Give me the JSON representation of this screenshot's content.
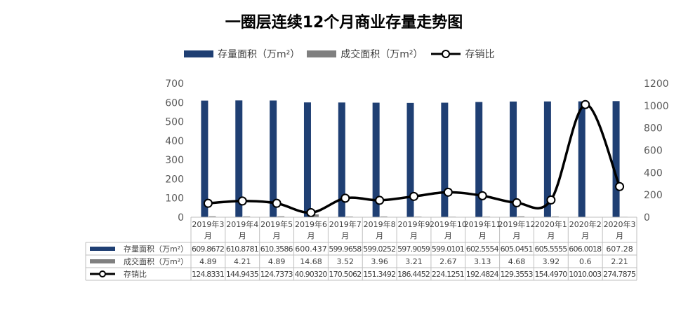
{
  "title": "一圈层连续12个月商业存量走势图",
  "colors": {
    "stock": "#1f3f73",
    "deal": "#7f7f7f",
    "ratio": "#000000"
  },
  "chart_data": {
    "type": "bar",
    "title": "一圈层连续12个月商业存量走势图",
    "categories": [
      "2019年3月",
      "2019年4月",
      "2019年5月",
      "2019年6月",
      "2019年7月",
      "2019年8月",
      "2019年9月",
      "2019年10月",
      "2019年11月",
      "2019年12月",
      "2020年1月",
      "2020年2月",
      "2020年3月"
    ],
    "category_lines": [
      [
        "2019年3",
        "月"
      ],
      [
        "2019年4",
        "月"
      ],
      [
        "2019年5",
        "月"
      ],
      [
        "2019年6",
        "月"
      ],
      [
        "2019年7",
        "月"
      ],
      [
        "2019年8",
        "月"
      ],
      [
        "2019年9",
        "月"
      ],
      [
        "2019年10",
        "月"
      ],
      [
        "2019年11",
        "月"
      ],
      [
        "2019年12",
        "月"
      ],
      [
        "2020年1",
        "月"
      ],
      [
        "2020年2",
        "月"
      ],
      [
        "2020年3",
        "月"
      ]
    ],
    "series": [
      {
        "name": "存量面积（万m²）",
        "type": "bar",
        "axis": "left",
        "values": [
          609.8672,
          610.8781,
          610.3586,
          600.437,
          599.9658,
          599.0252,
          597.9059,
          599.0101,
          602.5554,
          605.0451,
          605.5555,
          606.0018,
          607.28
        ],
        "labels": [
          "609.8672",
          "610.8781",
          "610.3586",
          "600.437",
          "599.9658",
          "599.0252",
          "597.9059",
          "599.0101",
          "602.5554",
          "605.0451",
          "605.5555",
          "606.0018",
          "607.28"
        ]
      },
      {
        "name": "成交面积（万m²）",
        "type": "bar",
        "axis": "left",
        "values": [
          4.89,
          4.21,
          4.89,
          14.68,
          3.52,
          3.96,
          3.21,
          2.67,
          3.13,
          4.68,
          3.92,
          0.6,
          2.21
        ],
        "labels": [
          "4.89",
          "4.21",
          "4.89",
          "14.68",
          "3.52",
          "3.96",
          "3.21",
          "2.67",
          "3.13",
          "4.68",
          "3.92",
          "0.6",
          "2.21"
        ]
      },
      {
        "name": "存销比",
        "type": "line",
        "axis": "right",
        "values": [
          124.8331,
          144.9435,
          124.7373,
          40.9032,
          170.5062,
          151.3492,
          186.4452,
          224.1251,
          192.4824,
          129.3553,
          154.497,
          1010.003,
          274.7875
        ],
        "labels": [
          "124.8331",
          "144.9435",
          "124.7373",
          "40.90320",
          "170.5062",
          "151.3492",
          "186.4452",
          "224.1251",
          "192.4824",
          "129.3553",
          "154.4970",
          "1010.003",
          "274.7875"
        ]
      }
    ],
    "y_left": {
      "min": 0,
      "max": 700,
      "ticks": [
        "0",
        "100",
        "200",
        "300",
        "400",
        "500",
        "600",
        "700"
      ]
    },
    "y_right": {
      "min": 0,
      "max": 1200,
      "ticks": [
        "0",
        "200",
        "400",
        "600",
        "800",
        "1000",
        "1200"
      ]
    },
    "legend_position": "top",
    "grid": false,
    "data_table": true
  }
}
